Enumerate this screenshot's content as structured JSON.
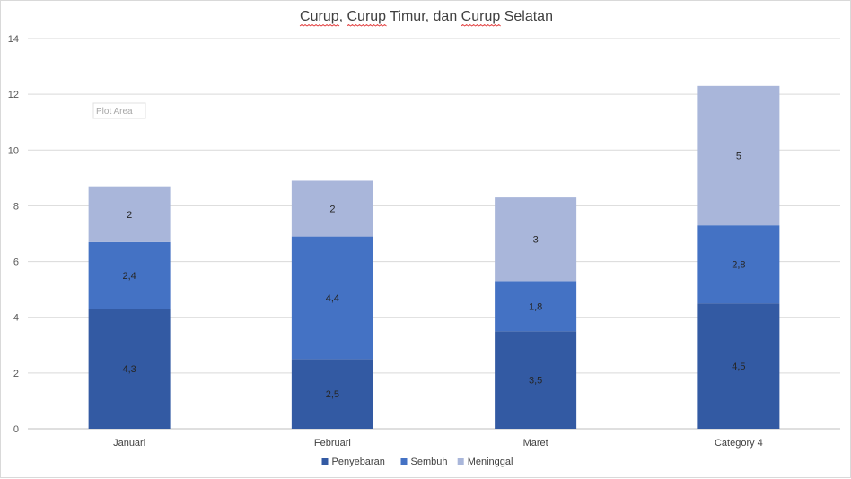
{
  "chart_data": {
    "type": "bar",
    "stacked": true,
    "title": "Curup, Curup Timur, dan Curup Selatan",
    "title_spellcheck_words": [
      "Curup",
      "Curup",
      "Curup"
    ],
    "categories": [
      "Januari",
      "Februari",
      "Maret",
      "Category 4"
    ],
    "series": [
      {
        "name": "Penyebaran",
        "values": [
          4.3,
          2.5,
          3.5,
          4.5
        ],
        "labels": [
          "4,3",
          "2,5",
          "3,5",
          "4,5"
        ],
        "color": "#335aa3"
      },
      {
        "name": "Sembuh",
        "values": [
          2.4,
          4.4,
          1.8,
          2.8
        ],
        "labels": [
          "2,4",
          "4,4",
          "1,8",
          "2,8"
        ],
        "color": "#4472c4"
      },
      {
        "name": "Meninggal",
        "values": [
          2,
          2,
          3,
          5
        ],
        "labels": [
          "2",
          "2",
          "3",
          "5"
        ],
        "color": "#a9b6da"
      }
    ],
    "ylim": [
      0,
      14
    ],
    "yticks": [
      0,
      2,
      4,
      6,
      8,
      10,
      12,
      14
    ],
    "ytick_labels": [
      "0",
      "2",
      "4",
      "6",
      "8",
      "10",
      "12",
      "14"
    ],
    "grid": true,
    "legend_position": "bottom",
    "xlabel": "",
    "ylabel": ""
  },
  "plot_area_tag": "Plot Area",
  "colors": {
    "gridline": "#d9d9d9",
    "axis": "#bfbfbf",
    "spellcheck": "#e03030"
  }
}
